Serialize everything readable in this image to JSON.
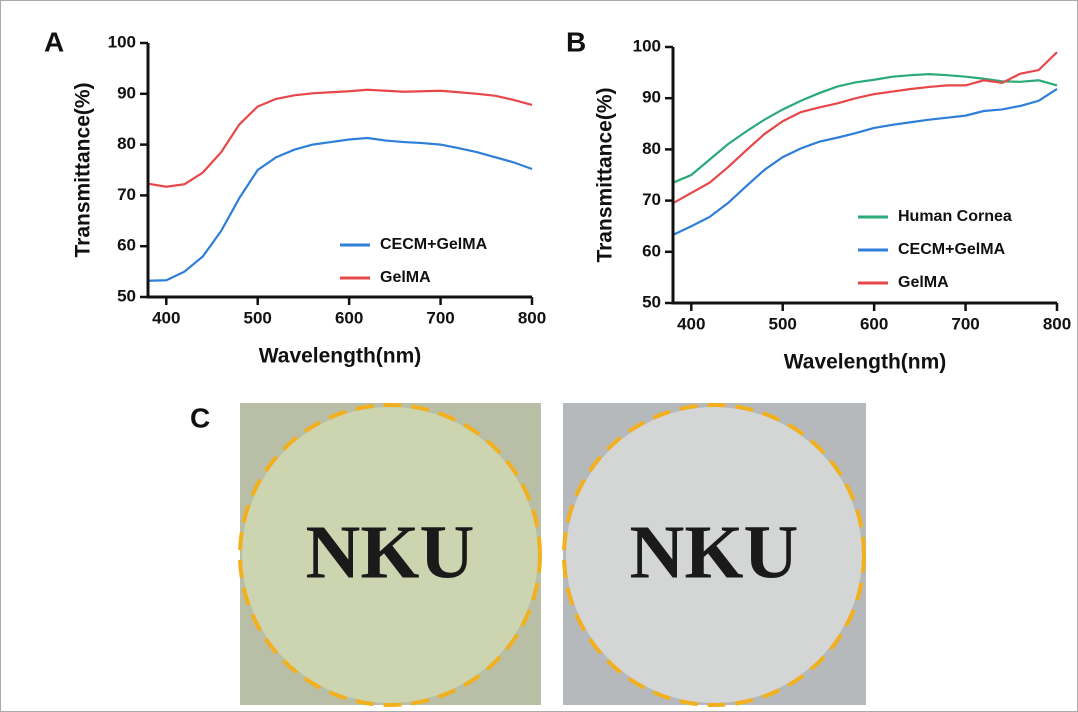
{
  "chart_data": [
    {
      "type": "line",
      "xlabel": "Wavelength(nm)",
      "ylabel": "Transmittance(%)",
      "x": [
        380,
        400,
        420,
        440,
        460,
        480,
        500,
        520,
        540,
        560,
        580,
        600,
        620,
        640,
        660,
        680,
        700,
        720,
        740,
        760,
        780,
        800
      ],
      "series": [
        {
          "name": "CECM+GelMA",
          "color": "#2f7ed8",
          "values": [
            53.2,
            53.3,
            55,
            58,
            63,
            69.5,
            75,
            77.5,
            79,
            80,
            80.5,
            81,
            81.3,
            80.8,
            80.5,
            80.3,
            80,
            79.3,
            78.5,
            77.5,
            76.5,
            75.2
          ]
        },
        {
          "name": "GelMA",
          "color": "#e8474a",
          "values": [
            72.3,
            71.7,
            72.2,
            74.5,
            78.5,
            84,
            87.5,
            89,
            89.7,
            90.1,
            90.3,
            90.5,
            90.8,
            90.6,
            90.4,
            90.5,
            90.6,
            90.3,
            90,
            89.6,
            88.8,
            87.8
          ]
        }
      ],
      "xlim": [
        380,
        800
      ],
      "xticks": [
        400,
        500,
        600,
        700,
        800
      ],
      "ylim": [
        50,
        100
      ],
      "yticks": [
        50,
        60,
        70,
        80,
        90,
        100
      ],
      "legend": "lower right"
    },
    {
      "type": "line",
      "xlabel": "Wavelength(nm)",
      "ylabel": "Transmittance(%)",
      "x": [
        380,
        400,
        420,
        440,
        460,
        480,
        500,
        520,
        540,
        560,
        580,
        600,
        620,
        640,
        660,
        680,
        700,
        720,
        740,
        760,
        780,
        800
      ],
      "series": [
        {
          "name": "Human Cornea",
          "color": "#2aaa78",
          "values": [
            73.5,
            75,
            78,
            81,
            83.5,
            85.8,
            87.8,
            89.5,
            91,
            92.3,
            93.1,
            93.6,
            94.2,
            94.5,
            94.7,
            94.5,
            94.2,
            93.8,
            93.3,
            93.2,
            93.5,
            92.5
          ]
        },
        {
          "name": "CECM+GelMA",
          "color": "#2f7ed8",
          "values": [
            63.3,
            65,
            66.8,
            69.5,
            72.8,
            76,
            78.5,
            80.2,
            81.5,
            82.3,
            83.2,
            84.2,
            84.8,
            85.3,
            85.8,
            86.2,
            86.6,
            87.5,
            87.8,
            88.5,
            89.5,
            91.8
          ]
        },
        {
          "name": "GelMA",
          "color": "#e8474a",
          "values": [
            69.5,
            71.5,
            73.5,
            76.5,
            79.8,
            83,
            85.5,
            87.3,
            88.2,
            89,
            90,
            90.8,
            91.3,
            91.8,
            92.2,
            92.5,
            92.5,
            93.5,
            93,
            94.8,
            95.5,
            99
          ]
        }
      ],
      "xlim": [
        380,
        800
      ],
      "xticks": [
        400,
        500,
        600,
        700,
        800
      ],
      "ylim": [
        50,
        100
      ],
      "yticks": [
        50,
        60,
        70,
        80,
        90,
        100
      ],
      "legend": "lower right"
    }
  ],
  "panel_labels": [
    "A",
    "B",
    "C"
  ],
  "photos": [
    {
      "text": "NKU"
    },
    {
      "text": "NKU"
    }
  ]
}
